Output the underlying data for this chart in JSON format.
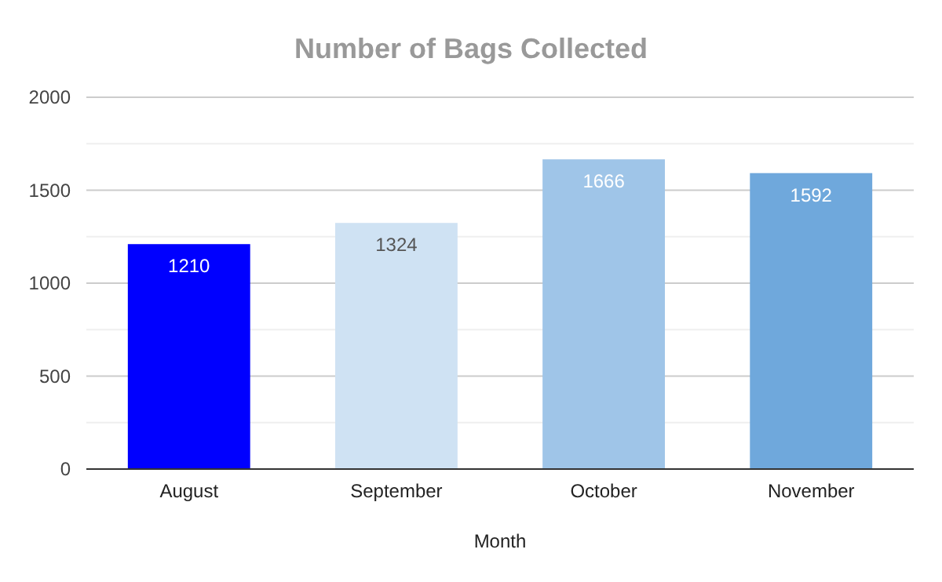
{
  "chart_data": {
    "type": "bar",
    "title": "Number of Bags Collected",
    "xlabel": "Month",
    "categories": [
      "August",
      "September",
      "October",
      "November"
    ],
    "values": [
      1210,
      1324,
      1666,
      1592
    ],
    "colors": [
      "#0000ff",
      "#cfe2f3",
      "#9fc5e8",
      "#6fa8dc"
    ],
    "ylim": [
      0,
      2000
    ],
    "yticks": [
      0,
      {
        "value": 250,
        "label": null
      },
      500,
      {
        "value": 750,
        "label": null
      },
      1000,
      {
        "value": 1250,
        "label": null
      },
      1500,
      {
        "value": 1750,
        "label": null
      },
      2000
    ],
    "grid": "y",
    "data_labels": true
  }
}
